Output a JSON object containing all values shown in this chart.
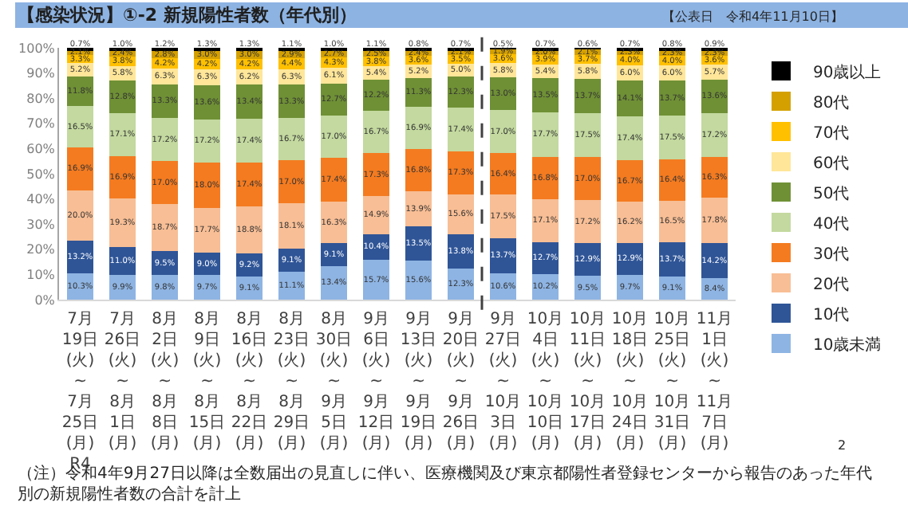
{
  "chart_data": {
    "type": "bar",
    "stacked": true,
    "title": "【感染状況】①-2 新規陽性者数（年代別）",
    "categories": [
      "7月\n19日\n(火)\n~\n7月\n25日\n(月)\nR4",
      "7月\n26日\n(火)\n~\n8月\n1日\n(月)",
      "8月\n2日\n(火)\n~\n8月\n8日\n(月)",
      "8月\n9日\n(火)\n~\n8月\n15日\n(月)",
      "8月\n16日\n(火)\n~\n8月\n22日\n(月)",
      "8月\n23日\n(火)\n~\n8月\n29日\n(月)",
      "8月\n30日\n(火)\n~\n9月\n5日\n(月)",
      "9月\n6日\n(火)\n~\n9月\n12日\n(月)",
      "9月\n13日\n(火)\n~\n9月\n19日\n(月)",
      "9月\n20日\n(火)\n~\n9月\n26日\n(月)",
      "9月\n27日\n(火)\n~\n10月\n3日\n(月)",
      "10月\n4日\n(火)\n~\n10月\n10日\n(月)",
      "10月\n11日\n(火)\n~\n10月\n17日\n(月)",
      "10月\n18日\n(火)\n~\n10月\n24日\n(月)",
      "10月\n25日\n(火)\n~\n10月\n31日\n(月)",
      "11月\n1日\n(火)\n~\n11月\n7日\n(月)"
    ],
    "series": [
      {
        "name": "10歳未満",
        "color": "#8eb4e3",
        "values": [
          10.3,
          9.9,
          9.8,
          9.7,
          9.1,
          11.1,
          13.4,
          15.7,
          15.6,
          12.3,
          10.6,
          10.2,
          9.5,
          9.7,
          9.1,
          8.4
        ],
        "value_labels": [
          "10.3%",
          "9.9%",
          "9.8%",
          "9.7%",
          "9.1%",
          "11.1%",
          "13.4%",
          "15.7%",
          "15.6%",
          "12.3%",
          "10.6%",
          "10.2%",
          "9.5%",
          "9.7%",
          "9.1%",
          "8.4%"
        ]
      },
      {
        "name": "10代",
        "color": "#2f5597",
        "values": [
          13.2,
          11.0,
          9.5,
          9.0,
          9.2,
          9.1,
          9.1,
          10.4,
          13.5,
          13.8,
          13.7,
          12.7,
          12.9,
          12.9,
          13.7,
          14.2
        ],
        "value_labels": [
          "13.2%",
          "11.0%",
          "9.5%",
          "9.0%",
          "9.2%",
          "9.1%",
          "9.1%",
          "10.4%",
          "13.5%",
          "13.8%",
          "13.7%",
          "12.7%",
          "12.9%",
          "12.9%",
          "13.7%",
          "14.2%"
        ]
      },
      {
        "name": "20代",
        "color": "#f8be95",
        "values": [
          20.0,
          19.3,
          18.7,
          17.7,
          18.8,
          18.1,
          16.3,
          14.9,
          13.9,
          15.6,
          17.5,
          17.1,
          17.2,
          16.2,
          16.5,
          17.8
        ],
        "value_labels": [
          "20.0%",
          "19.3%",
          "18.7%",
          "17.7%",
          "18.8%",
          "18.1%",
          "16.3%",
          "14.9%",
          "13.9%",
          "15.6%",
          "17.5%",
          "17.1%",
          "17.2%",
          "16.2%",
          "16.5%",
          "17.8%"
        ]
      },
      {
        "name": "30代",
        "color": "#f47b20",
        "values": [
          16.9,
          16.9,
          17.0,
          18.0,
          17.4,
          17.0,
          17.4,
          17.3,
          16.8,
          17.3,
          16.4,
          16.8,
          17.0,
          16.7,
          16.4,
          16.3
        ],
        "value_labels": [
          "16.9%",
          "16.9%",
          "17.0%",
          "18.0%",
          "17.4%",
          "17.0%",
          "17.4%",
          "17.3%",
          "16.8%",
          "17.3%",
          "16.4%",
          "16.8%",
          "17.0%",
          "16.7%",
          "16.4%",
          "16.3%"
        ]
      },
      {
        "name": "40代",
        "color": "#c3d99f",
        "values": [
          16.5,
          17.1,
          17.2,
          17.2,
          17.4,
          16.7,
          17.0,
          16.7,
          16.9,
          17.4,
          17.0,
          17.7,
          17.5,
          17.4,
          17.5,
          17.2
        ],
        "value_labels": [
          "16.5%",
          "17.1%",
          "17.2%",
          "17.2%",
          "17.4%",
          "16.7%",
          "17.0%",
          "16.7%",
          "16.9%",
          "17.4%",
          "17.0%",
          "17.7%",
          "17.5%",
          "17.4%",
          "17.5%",
          "17.2%"
        ]
      },
      {
        "name": "50代",
        "color": "#6f9035",
        "values": [
          11.8,
          12.8,
          13.3,
          13.6,
          13.4,
          13.3,
          12.7,
          12.2,
          11.3,
          12.3,
          13.0,
          13.5,
          13.7,
          14.1,
          13.7,
          13.6
        ],
        "value_labels": [
          "11.8%",
          "12.8%",
          "13.3%",
          "13.6%",
          "13.4%",
          "13.3%",
          "12.7%",
          "12.2%",
          "11.3%",
          "12.3%",
          "13.0%",
          "13.5%",
          "13.7%",
          "14.1%",
          "13.7%",
          "13.6%"
        ]
      },
      {
        "name": "60代",
        "color": "#ffe699",
        "values": [
          5.2,
          5.8,
          6.3,
          6.3,
          6.2,
          6.3,
          6.1,
          5.4,
          5.2,
          5.0,
          5.8,
          5.4,
          5.8,
          6.0,
          6.0,
          5.7
        ],
        "value_labels": [
          "5.2%",
          "5.8%",
          "6.3%",
          "6.3%",
          "6.2%",
          "6.3%",
          "6.1%",
          "5.4%",
          "5.2%",
          "5.0%",
          "5.8%",
          "5.4%",
          "5.8%",
          "6.0%",
          "6.0%",
          "5.7%"
        ]
      },
      {
        "name": "70代",
        "color": "#ffc000",
        "values": [
          3.3,
          3.8,
          4.2,
          4.2,
          4.2,
          4.4,
          4.3,
          3.8,
          3.6,
          3.5,
          3.6,
          3.9,
          3.7,
          4.0,
          4.0,
          3.6
        ],
        "value_labels": [
          "3.3%",
          "3.8%",
          "4.2%",
          "4.2%",
          "4.2%",
          "4.4%",
          "4.3%",
          "3.8%",
          "3.6%",
          "3.5%",
          "3.6%",
          "3.9%",
          "3.7%",
          "4.0%",
          "4.0%",
          "3.6%"
        ]
      },
      {
        "name": "80代",
        "color": "#d4a000",
        "values": [
          2.1,
          2.4,
          2.8,
          3.0,
          3.0,
          2.9,
          2.7,
          2.5,
          2.4,
          2.1,
          1.9,
          2.0,
          2.1,
          2.3,
          2.3,
          2.3
        ],
        "value_labels": [
          "2.1%",
          "2.4%",
          "2.8%",
          "3.0%",
          "3.0%",
          "2.9%",
          "2.7%",
          "2.5%",
          "2.4%",
          "2.1%",
          "1.9%",
          "2.0%",
          "2.1%",
          "2.3%",
          "2.3%",
          "2.3%"
        ]
      },
      {
        "name": "90歳以上",
        "color": "#000000",
        "values": [
          0.7,
          1.0,
          1.2,
          1.3,
          1.3,
          1.1,
          1.0,
          1.1,
          0.8,
          0.7,
          0.5,
          0.7,
          0.6,
          0.7,
          0.8,
          0.9
        ],
        "value_labels": [
          "0.7%",
          "1.0%",
          "1.2%",
          "1.3%",
          "1.3%",
          "1.1%",
          "1.0%",
          "1.1%",
          "0.8%",
          "0.7%",
          "0.5%",
          "0.7%",
          "0.6%",
          "0.7%",
          "0.8%",
          "0.9%"
        ]
      }
    ],
    "ylim": [
      0,
      100
    ],
    "yticks": [
      {
        "value": 0,
        "label": "0%"
      },
      {
        "value": 10,
        "label": "10%"
      },
      {
        "value": 20,
        "label": "20%"
      },
      {
        "value": 30,
        "label": "30%"
      },
      {
        "value": 40,
        "label": "40%"
      },
      {
        "value": 50,
        "label": "50%"
      },
      {
        "value": 60,
        "label": "60%"
      },
      {
        "value": 70,
        "label": "70%"
      },
      {
        "value": 80,
        "label": "80%"
      },
      {
        "value": 90,
        "label": "90%"
      },
      {
        "value": 100,
        "label": "100%"
      }
    ],
    "legend": "right",
    "annotations": [
      "【公表日　令和4年11月10日】",
      "（注）令和4年9月27日以降は全数届出の見直しに伴い、医療機関及び東京都陽性者登録センターから報告のあった年代別の新規陽性者数の合計を計上",
      "2"
    ]
  }
}
